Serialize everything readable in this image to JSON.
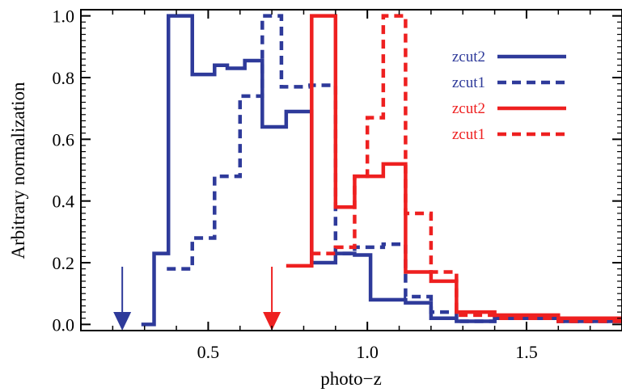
{
  "chart_data": {
    "type": "line",
    "xlabel": "photo−z",
    "ylabel": "Arbitrary normalization",
    "xlim": [
      0.1,
      1.8
    ],
    "ylim": [
      -0.02,
      1.02
    ],
    "xticks": [
      {
        "value": 0.5,
        "label": "0.5"
      },
      {
        "value": 1.0,
        "label": "1.0"
      },
      {
        "value": 1.5,
        "label": "1.5"
      }
    ],
    "yticks": [
      {
        "value": 0.0,
        "label": "0.0"
      },
      {
        "value": 0.2,
        "label": "0.2"
      },
      {
        "value": 0.4,
        "label": "0.4"
      },
      {
        "value": 0.6,
        "label": "0.6"
      },
      {
        "value": 0.8,
        "label": "0.8"
      },
      {
        "value": 1.0,
        "label": "1.0"
      }
    ],
    "legend_position": "top-right",
    "series": [
      {
        "name": "zcut2",
        "color": "#2e3a9a",
        "style": "solid",
        "x": [
          0.29,
          0.33,
          0.375,
          0.45,
          0.52,
          0.56,
          0.615,
          0.67,
          0.745,
          0.825,
          0.9,
          0.96,
          1.01,
          1.12,
          1.2,
          1.28,
          1.4,
          1.6
        ],
        "y": [
          0.0,
          0.23,
          1.0,
          0.81,
          0.84,
          0.83,
          0.855,
          0.64,
          0.69,
          0.2,
          0.23,
          0.225,
          0.08,
          0.07,
          0.02,
          0.01,
          0.02,
          0.01
        ],
        "x_end": 1.8
      },
      {
        "name": "zcut1",
        "color": "#2e3a9a",
        "style": "dashed",
        "x": [
          0.37,
          0.45,
          0.52,
          0.6,
          0.67,
          0.73,
          0.82,
          0.9,
          0.96,
          1.05,
          1.12,
          1.2,
          1.28,
          1.4,
          1.6
        ],
        "y": [
          0.18,
          0.28,
          0.48,
          0.74,
          1.0,
          0.77,
          0.775,
          0.23,
          0.25,
          0.26,
          0.09,
          0.04,
          0.01,
          0.02,
          0.01
        ],
        "x_end": 1.8
      },
      {
        "name": "zcut2",
        "color": "#ee2020",
        "style": "solid",
        "x": [
          0.745,
          0.825,
          0.9,
          0.96,
          1.05,
          1.12,
          1.2,
          1.28,
          1.4,
          1.6
        ],
        "y": [
          0.19,
          1.0,
          0.38,
          0.48,
          0.52,
          0.17,
          0.14,
          0.04,
          0.03,
          0.02
        ],
        "x_end": 1.8
      },
      {
        "name": "zcut1",
        "color": "#ee2020",
        "style": "dashed",
        "x": [
          0.825,
          0.9,
          0.96,
          1.0,
          1.05,
          1.12,
          1.2,
          1.28,
          1.4,
          1.6
        ],
        "y": [
          0.23,
          0.25,
          0.48,
          0.67,
          1.0,
          0.36,
          0.17,
          0.03,
          0.02,
          0.01
        ],
        "x_end": 1.8
      }
    ],
    "markers": [
      {
        "x": 0.23,
        "color": "#2e3a9a"
      },
      {
        "x": 0.7,
        "color": "#ee2020"
      }
    ]
  }
}
